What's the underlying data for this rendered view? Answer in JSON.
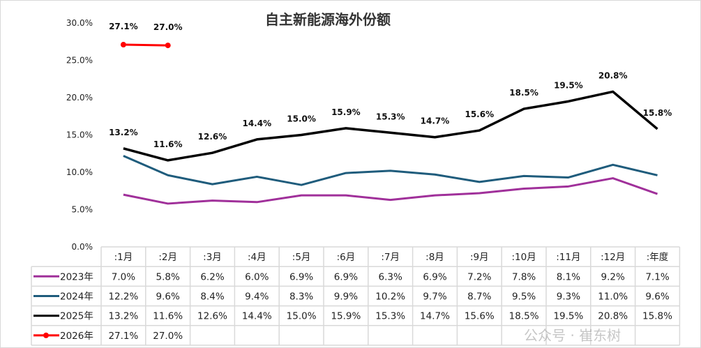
{
  "chart_data": {
    "type": "line",
    "title": "自主新能源海外份额",
    "categories": [
      ":1月",
      ":2月",
      ":3月",
      ":4月",
      ":5月",
      ":6月",
      ":7月",
      ":8月",
      ":9月",
      ":10月",
      ":11月",
      ":12月",
      ":年度"
    ],
    "y_ticks": [
      "0.0%",
      "5.0%",
      "10.0%",
      "15.0%",
      "20.0%",
      "25.0%",
      "30.0%"
    ],
    "ylim": [
      0,
      30
    ],
    "unit": "%",
    "grid": false,
    "legend": "data table, left",
    "series": [
      {
        "name": "2023年",
        "color": "#a0309a",
        "marker": false,
        "data_labels": false,
        "values": [
          7.0,
          5.8,
          6.2,
          6.0,
          6.9,
          6.9,
          6.3,
          6.9,
          7.2,
          7.8,
          8.1,
          9.2,
          7.1
        ]
      },
      {
        "name": "2024年",
        "color": "#1f5c7c",
        "marker": false,
        "data_labels": false,
        "values": [
          12.2,
          9.6,
          8.4,
          9.4,
          8.3,
          9.9,
          10.2,
          9.7,
          8.7,
          9.5,
          9.3,
          11.0,
          9.6
        ]
      },
      {
        "name": "2025年",
        "color": "#000000",
        "marker": false,
        "data_labels": true,
        "label_color": "#111111",
        "values": [
          13.2,
          11.6,
          12.6,
          14.4,
          15.0,
          15.9,
          15.3,
          14.7,
          15.6,
          18.5,
          19.5,
          20.8,
          15.8
        ]
      },
      {
        "name": "2026年",
        "color": "#ff0000",
        "marker": true,
        "data_labels": true,
        "label_color": "#ff0000",
        "values": [
          27.1,
          27.0,
          null,
          null,
          null,
          null,
          null,
          null,
          null,
          null,
          null,
          null,
          null
        ]
      }
    ]
  },
  "watermark": "公众号 · 崔东树"
}
